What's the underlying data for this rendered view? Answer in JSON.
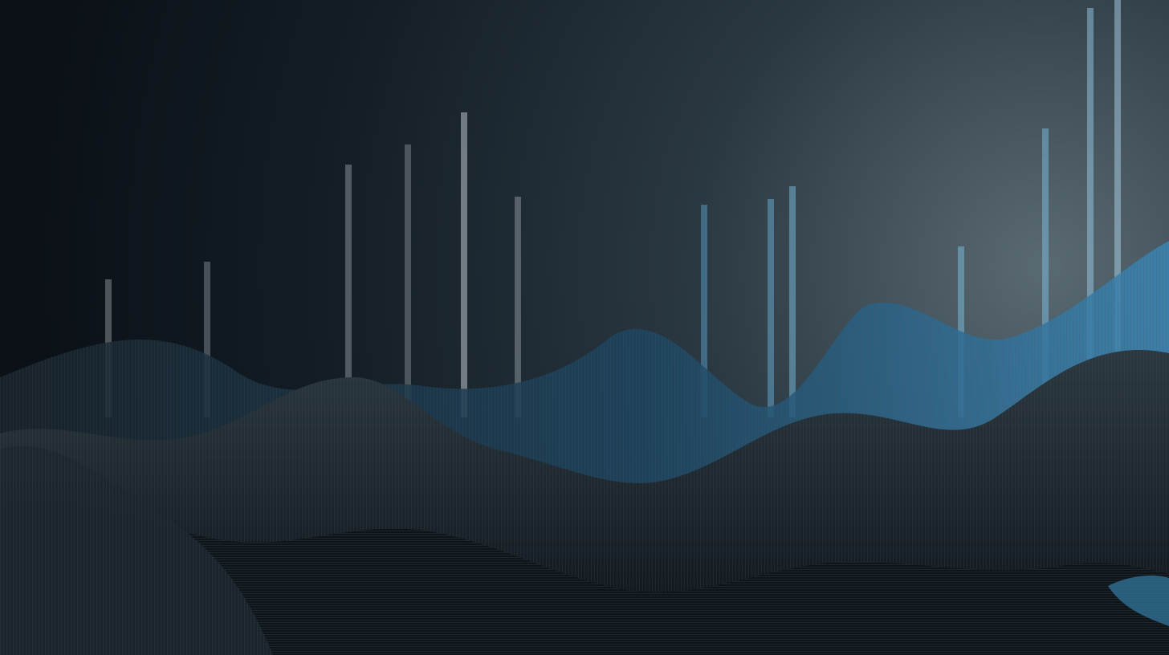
{
  "scene": {
    "colors": {
      "sky_dark": "#0b1117",
      "sky_mid": "#1b2730",
      "sky_light": "#5a6a72",
      "bar_gray": "#c8cfd4",
      "bar_blue": "#4fb0e6",
      "bar_blue_bright": "#7fd0f5",
      "wave_dark": "#101820",
      "wave_mid": "#27323a",
      "wave_line": "#3e4a52",
      "wave_blue": "#1f5f86"
    },
    "elements": {
      "background": "dark-gradient-backdrop",
      "bars": "vertical-line-spectrum",
      "hills": "striated-wave-hills"
    }
  }
}
